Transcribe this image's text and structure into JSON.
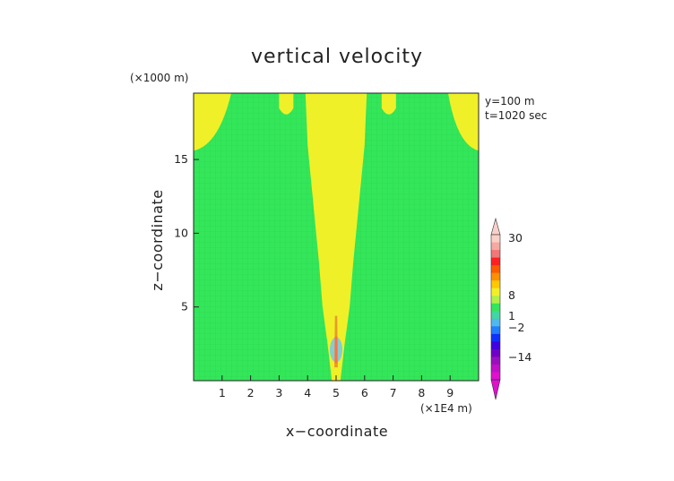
{
  "chart_data": {
    "type": "heatmap",
    "title": "vertical velocity",
    "xlabel": "x−coordinate",
    "ylabel": "z−coordinate",
    "x_unit": "(×1E4 m)",
    "y_unit": "(×1000 m)",
    "annotations": [
      "y=100 m",
      "t=1020 sec"
    ],
    "xlim": [
      0,
      10
    ],
    "ylim": [
      0,
      19.5
    ],
    "x_ticks": [
      1,
      2,
      3,
      4,
      5,
      6,
      7,
      8,
      9
    ],
    "y_ticks": [
      5,
      10,
      15
    ],
    "background_color": "#33e65a",
    "updraft_color": "#f0f028",
    "core_colors": [
      "#e89a2a",
      "#ff7040",
      "#70c8f0"
    ],
    "regions": {
      "central_plume_width": [
        [
          0,
          0.3
        ],
        [
          2.5,
          0.6
        ],
        [
          5,
          0.95
        ],
        [
          8,
          1.2
        ],
        [
          11,
          1.5
        ],
        [
          14,
          1.8
        ],
        [
          16,
          2.0
        ],
        [
          19.5,
          2.15
        ]
      ],
      "central_plume_x_center": 5.0,
      "top_corner_lobes": [
        {
          "side": "left",
          "bottom_z": 15.6
        },
        {
          "side": "right",
          "bottom_z": 15.6
        }
      ],
      "top_small_lobes_x": [
        3.25,
        6.85
      ],
      "top_small_lobes_bottom_z": 18.0
    },
    "colorbar": {
      "labels": [
        "30",
        "8",
        "1",
        "−2",
        "−14"
      ],
      "colors": [
        "#f8d0c8",
        "#f8a8a0",
        "#f07878",
        "#ff2020",
        "#ff5a00",
        "#ff9000",
        "#ffc800",
        "#f0f028",
        "#b0f048",
        "#33e65a",
        "#40d8a0",
        "#50b8f0",
        "#2080ff",
        "#1030ff",
        "#4000e0",
        "#7000c8",
        "#9a10c0",
        "#c010c8",
        "#e010d0"
      ]
    }
  }
}
